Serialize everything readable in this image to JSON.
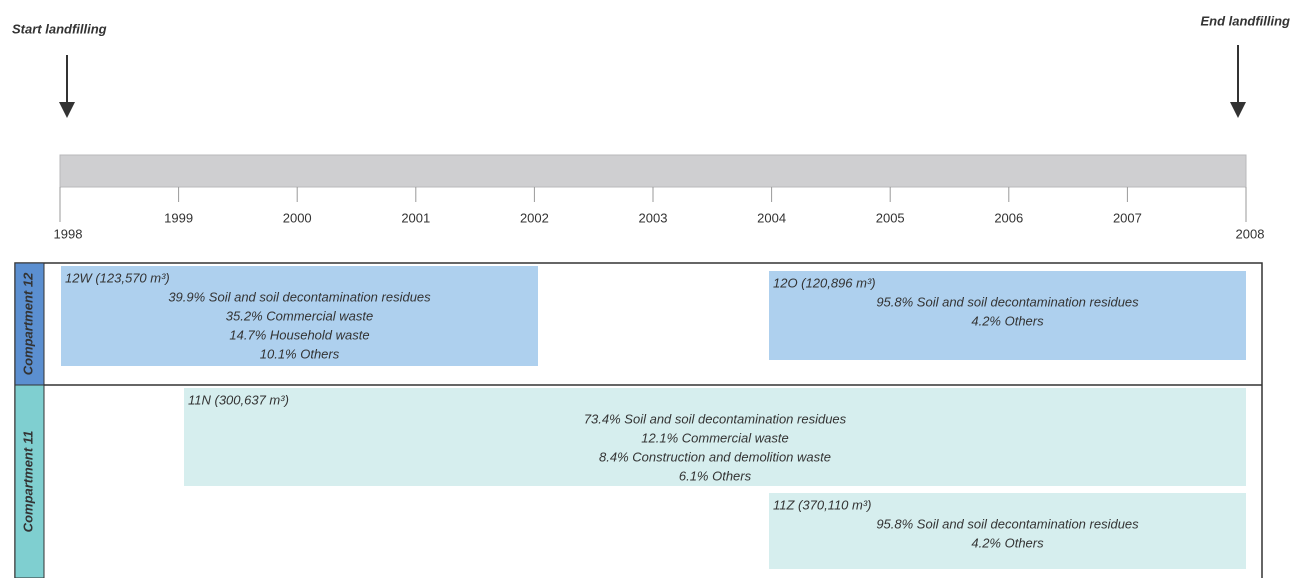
{
  "header": {
    "start": "Start landfilling",
    "end": "End landfilling"
  },
  "timeline": {
    "years": [
      "1998",
      "1999",
      "2000",
      "2001",
      "2002",
      "2003",
      "2004",
      "2005",
      "2006",
      "2007",
      "2008"
    ]
  },
  "compartments": [
    {
      "label": "Compartment 12",
      "blocks": [
        {
          "title": "12W (123,570 m³)",
          "lines": [
            "39.9% Soil and soil decontamination residues",
            "35.2% Commercial waste",
            "14.7% Household waste",
            "10.1% Others"
          ]
        },
        {
          "title": "12O (120,896 m³)",
          "lines": [
            "95.8% Soil and soil decontamination residues",
            "4.2% Others"
          ]
        }
      ]
    },
    {
      "label": "Compartment 11",
      "blocks": [
        {
          "title": "11N (300,637 m³)",
          "lines": [
            "73.4% Soil and soil decontamination residues",
            "12.1% Commercial waste",
            "8.4% Construction and demolition waste",
            "6.1% Others"
          ]
        },
        {
          "title": "11Z (370,110 m³)",
          "lines": [
            "95.8% Soil and soil decontamination residues",
            "4.2% Others"
          ]
        }
      ]
    }
  ]
}
